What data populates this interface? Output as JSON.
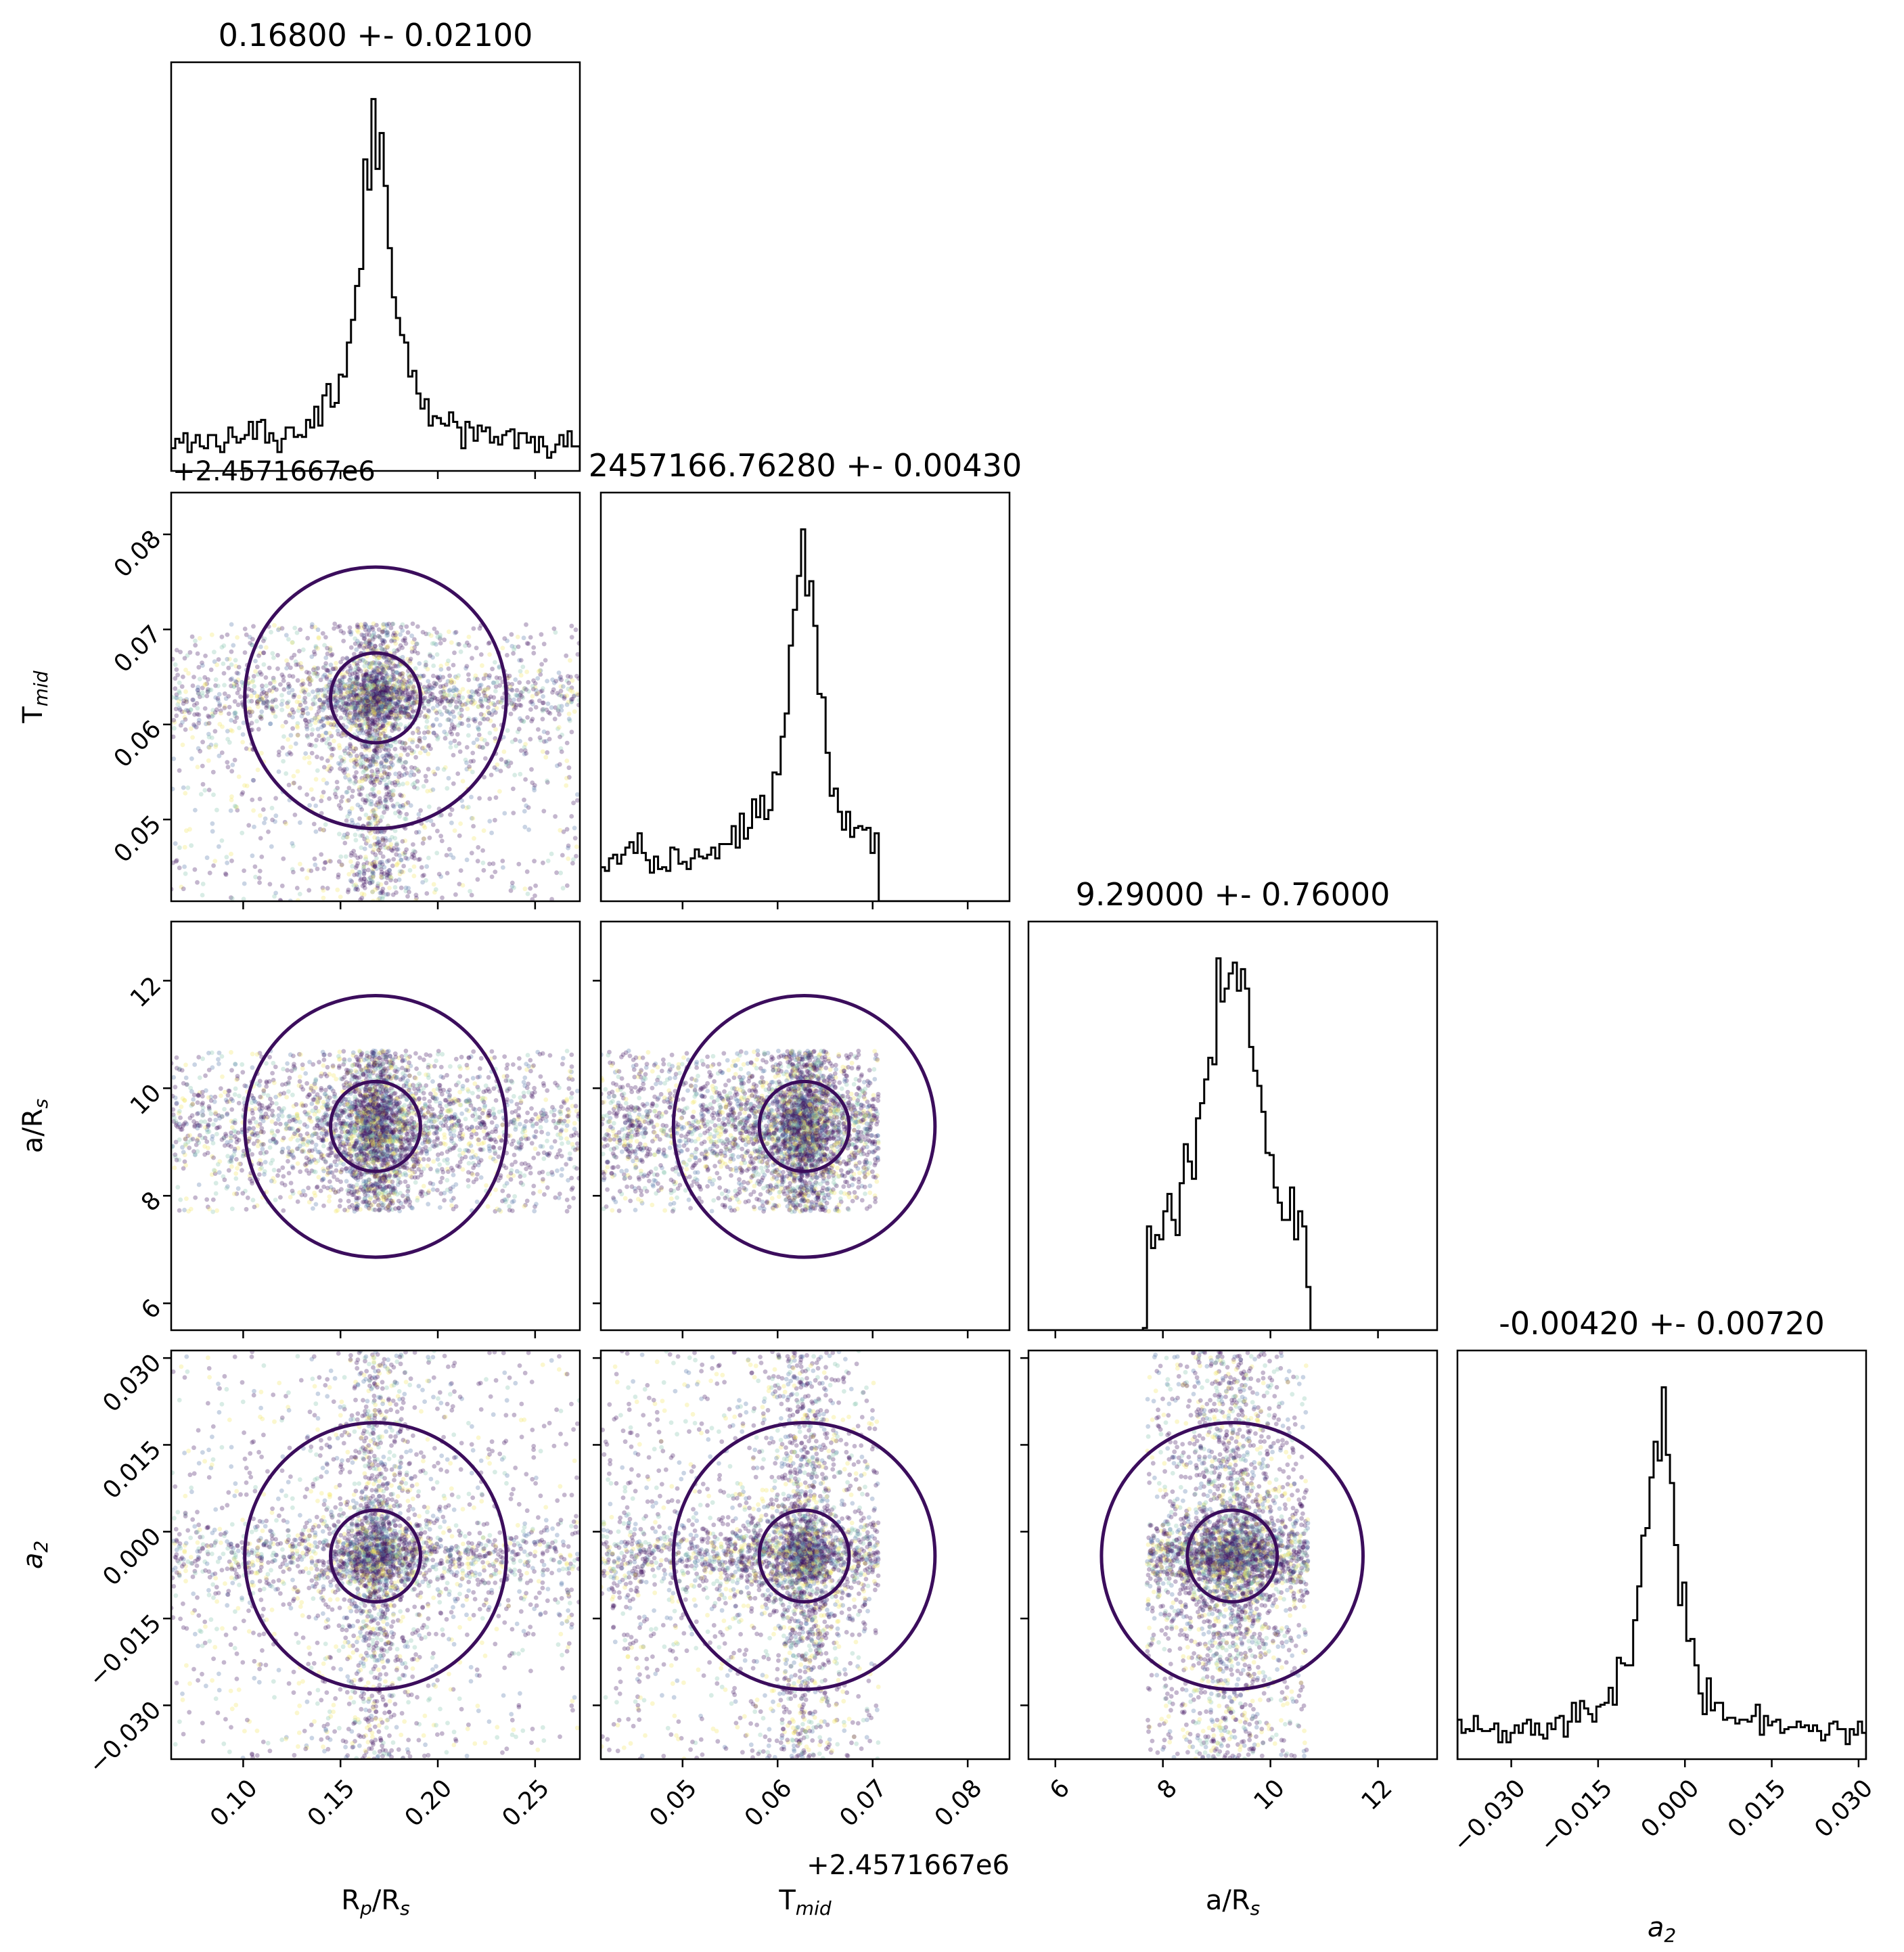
{
  "chart_data": {
    "type": "scatter",
    "subtype": "corner-plot",
    "parameters": [
      {
        "key": "rp",
        "label": "R",
        "label_sub": "p",
        "label_rest": "/R",
        "label_sub2": "s",
        "title": "0.16800 +- 0.02100",
        "range": [
          0.063,
          0.273
        ],
        "ticks": [
          0.1,
          0.15,
          0.2,
          0.25
        ],
        "tick_labels": [
          "0.10",
          "0.15",
          "0.20",
          "0.25"
        ],
        "median": 0.168,
        "sigma": 0.021
      },
      {
        "key": "tmid",
        "label": "T",
        "label_sub": "mid",
        "label_rest": "",
        "label_sub2": "",
        "title": "2457166.76280 +- 0.00430",
        "range": [
          0.0414,
          0.0844
        ],
        "ticks": [
          0.05,
          0.06,
          0.07,
          0.08
        ],
        "tick_labels": [
          "0.05",
          "0.06",
          "0.07",
          "0.08"
        ],
        "offset": "+2.4571667e6",
        "median": 0.0628,
        "sigma": 0.0043
      },
      {
        "key": "ars",
        "label": "a/R",
        "label_sub": "s",
        "label_rest": "",
        "label_sub2": "",
        "title": "9.29000 +- 0.76000",
        "range": [
          5.5,
          13.1
        ],
        "ticks": [
          6,
          8,
          10,
          12
        ],
        "tick_labels": [
          "6",
          "8",
          "10",
          "12"
        ],
        "median": 9.29,
        "sigma": 0.76
      },
      {
        "key": "a2",
        "label": "a",
        "label_sub": "2",
        "label_rest": "",
        "label_sub2": "",
        "label_italic": true,
        "title": "-0.00420 +- 0.00720",
        "range": [
          -0.0393,
          0.0313
        ],
        "ticks": [
          -0.03,
          -0.015,
          0.0,
          0.015,
          0.03
        ],
        "tick_labels": [
          "−0.030",
          "−0.015",
          "0.000",
          "0.015",
          "0.030"
        ],
        "median": -0.0042,
        "sigma": 0.0072
      }
    ],
    "sample_bounds": {
      "rp": [
        0.063,
        0.273
      ],
      "tmid": [
        0.0414,
        0.0706
      ],
      "ars": [
        7.7,
        10.7
      ],
      "a2": [
        -0.0393,
        0.0313
      ]
    },
    "histogram_bins": 100,
    "grid": false,
    "colors": {
      "contour": "#3b0d5c",
      "points_main": "#3b0d5c",
      "points_alt": [
        "#f2e55c",
        "#7fbfa8",
        "#4b6fa5"
      ],
      "histogram": "#000000"
    }
  }
}
